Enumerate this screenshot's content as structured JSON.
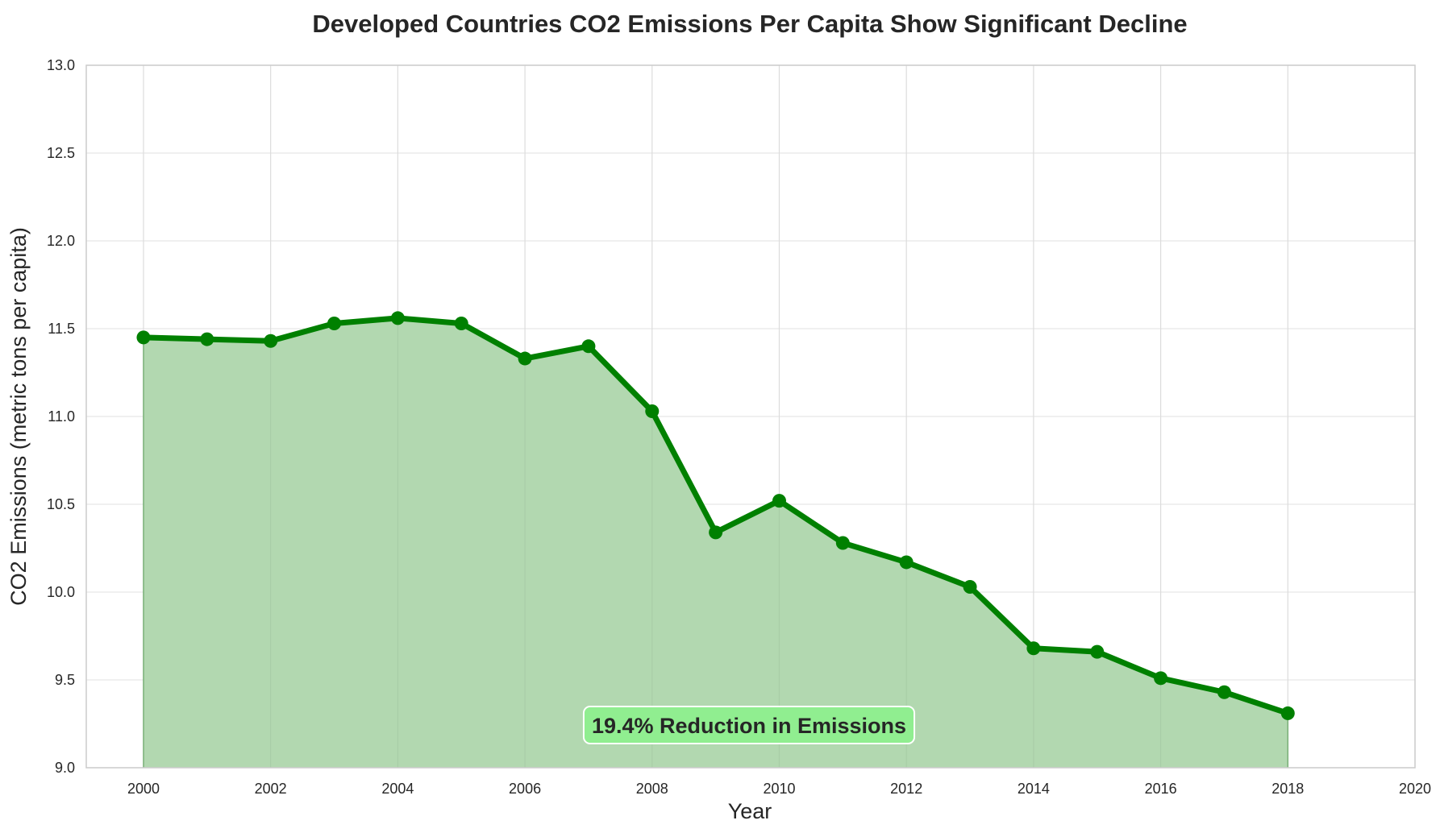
{
  "chart_data": {
    "type": "area",
    "title": "Developed Countries CO2 Emissions Per Capita Show Significant Decline",
    "xlabel": "Year",
    "ylabel": "CO2 Emissions (metric tons per capita)",
    "xlim": [
      1999.1,
      2020
    ],
    "ylim": [
      9.0,
      13.0
    ],
    "xticks": [
      "2000",
      "2002",
      "2004",
      "2006",
      "2008",
      "2010",
      "2012",
      "2014",
      "2016",
      "2018",
      "2020"
    ],
    "yticks": [
      "9.0",
      "9.5",
      "10.0",
      "10.5",
      "11.0",
      "11.5",
      "12.0",
      "12.5",
      "13.0"
    ],
    "grid": true,
    "series": [
      {
        "x": [
          2000,
          2001,
          2002,
          2003,
          2004,
          2005,
          2006,
          2007,
          2008,
          2009,
          2010,
          2011,
          2012,
          2013,
          2014,
          2015,
          2016,
          2017,
          2018
        ],
        "y": [
          11.45,
          11.44,
          11.43,
          11.53,
          11.56,
          11.53,
          11.33,
          11.4,
          11.03,
          10.34,
          10.52,
          10.28,
          10.17,
          10.03,
          9.68,
          9.66,
          9.51,
          9.43,
          9.31
        ]
      }
    ],
    "colors": {
      "line": "#008000",
      "fill": "#b2d8b0",
      "annotation_bg": "#90ee90"
    },
    "annotation": "19.4% Reduction in Emissions"
  }
}
